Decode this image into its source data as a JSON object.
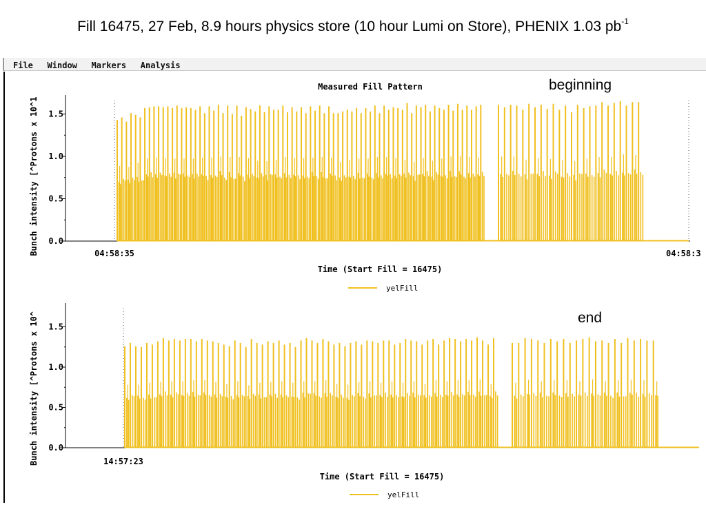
{
  "slide": {
    "title": "Fill 16475, 27 Feb, 8.9 hours physics store (10 hour Lumi on Store), PHENIX 1.03 pb",
    "title_superscript": "-1"
  },
  "menubar": {
    "items": [
      "File",
      "Window",
      "Markers",
      "Analysis"
    ]
  },
  "annotations": {
    "beginning": "beginning",
    "end": "end"
  },
  "colors": {
    "series": "#f0c020",
    "marker_line": "#555555"
  },
  "chart_data": [
    {
      "type": "bar",
      "title": "Measured Fill Pattern",
      "xlabel": "Time (Start Fill = 16475)",
      "ylabel": "Bunch intensity [^Protons x 10^1",
      "ylim": [
        0,
        1.75
      ],
      "yticks": [
        "0.0",
        "0.5",
        "1.0",
        "1.5"
      ],
      "xtick_left": "04:58:35",
      "xtick_right": "04:58:3",
      "legend": "yelFill",
      "grid": false,
      "series": [
        {
          "name": "yelFill",
          "peak_intensity": [
            1.43,
            1.46,
            1.41,
            1.51,
            1.49,
            1.46,
            1.57,
            1.58,
            1.59,
            1.59,
            1.58,
            1.59,
            1.57,
            1.6,
            1.57,
            1.58,
            1.57,
            1.55,
            1.59,
            1.51,
            1.59,
            1.54,
            1.61,
            1.51,
            1.6,
            1.5,
            1.6,
            1.48,
            1.58,
            1.56,
            1.53,
            1.6,
            1.52,
            1.59,
            1.55,
            1.55,
            1.6,
            1.52,
            1.58,
            1.53,
            1.58,
            1.51,
            1.59,
            1.54,
            1.6,
            1.51,
            1.59,
            1.51,
            1.51,
            1.53,
            1.55,
            1.53,
            1.57,
            1.51,
            1.57,
            1.53,
            1.6,
            1.51,
            1.6,
            1.55,
            1.58,
            1.57,
            1.55,
            1.63,
            1.51,
            1.6,
            1.58,
            1.61,
            1.53,
            1.6,
            1.57,
            1.55,
            1.61,
            1.54,
            1.62,
            1.55,
            1.6,
            1.55,
            1.59,
            1.61,
            1.61,
            1.58,
            1.61,
            1.6,
            1.55,
            1.62,
            1.58,
            1.61,
            1.56,
            1.62,
            1.55,
            1.6,
            1.52,
            1.61,
            1.57,
            1.59,
            1.6,
            1.64,
            1.6,
            1.63,
            1.65,
            1.6,
            1.64,
            1.64
          ],
          "gap_after_bunch": 80
        }
      ]
    },
    {
      "type": "bar",
      "title": "",
      "xlabel": "Time (Start Fill = 16475)",
      "ylabel": "Bunch intensity [^Protons x 10^",
      "ylim": [
        0,
        1.75
      ],
      "yticks": [
        "0.0",
        "0.5",
        "1.0",
        "1.5"
      ],
      "xtick_left": "14:57:23",
      "legend": "yelFill",
      "grid": false,
      "series": [
        {
          "name": "yelFill",
          "peak_intensity": [
            1.26,
            1.3,
            1.26,
            1.25,
            1.3,
            1.28,
            1.32,
            1.36,
            1.33,
            1.35,
            1.33,
            1.35,
            1.35,
            1.32,
            1.35,
            1.33,
            1.32,
            1.3,
            1.28,
            1.26,
            1.33,
            1.3,
            1.25,
            1.35,
            1.3,
            1.28,
            1.32,
            1.3,
            1.33,
            1.28,
            1.3,
            1.25,
            1.33,
            1.36,
            1.33,
            1.3,
            1.35,
            1.32,
            1.28,
            1.3,
            1.26,
            1.3,
            1.32,
            1.28,
            1.33,
            1.32,
            1.3,
            1.33,
            1.33,
            1.28,
            1.3,
            1.35,
            1.33,
            1.32,
            1.28,
            1.33,
            1.35,
            1.28,
            1.33,
            1.36,
            1.35,
            1.32,
            1.35,
            1.33,
            1.37,
            1.33,
            1.28,
            1.36,
            1.3,
            1.3,
            1.36,
            1.35,
            1.33,
            1.3,
            1.35,
            1.32,
            1.35,
            1.3,
            1.33,
            1.35,
            1.37,
            1.32,
            1.33,
            1.3,
            1.35,
            1.3,
            1.36,
            1.33,
            1.35,
            1.33,
            1.33
          ],
          "gap_after_bunch": 68
        }
      ]
    }
  ]
}
